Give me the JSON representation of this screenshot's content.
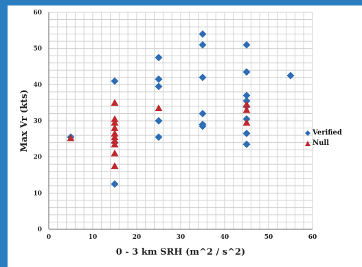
{
  "chart_data": {
    "type": "scatter",
    "xlabel": "0 - 3 km SRH (m^2 / s^2)",
    "ylabel": "Max Vr (kts)",
    "xlim": [
      0,
      60
    ],
    "ylim": [
      0,
      60
    ],
    "x_ticks": [
      "0",
      "10",
      "20",
      "30",
      "40",
      "50",
      "60"
    ],
    "y_ticks": [
      "0",
      "10",
      "20",
      "30",
      "40",
      "50",
      "60"
    ],
    "grid": true,
    "legend_position": "right",
    "series": [
      {
        "name": "Verified",
        "marker": "diamond",
        "color": "#2e6db4",
        "points": [
          [
            5,
            25.5
          ],
          [
            15,
            41
          ],
          [
            15,
            24
          ],
          [
            15,
            12.5
          ],
          [
            25,
            47.5
          ],
          [
            25,
            41.5
          ],
          [
            25,
            39.5
          ],
          [
            25,
            30
          ],
          [
            25,
            25.5
          ],
          [
            35,
            54
          ],
          [
            35,
            51
          ],
          [
            35,
            42
          ],
          [
            35,
            32
          ],
          [
            35,
            29
          ],
          [
            35,
            28.5
          ],
          [
            45,
            51
          ],
          [
            45,
            43.5
          ],
          [
            45,
            37
          ],
          [
            45,
            35.5
          ],
          [
            45,
            34
          ],
          [
            45,
            30.5
          ],
          [
            45,
            26.5
          ],
          [
            45,
            23.5
          ],
          [
            55,
            42.5
          ]
        ]
      },
      {
        "name": "Null",
        "marker": "triangle",
        "color": "#c0282d",
        "points": [
          [
            5,
            25.2
          ],
          [
            15,
            35
          ],
          [
            15,
            30.5
          ],
          [
            15,
            29.5
          ],
          [
            15,
            28
          ],
          [
            15,
            26.5
          ],
          [
            15,
            25.5
          ],
          [
            15,
            24.5
          ],
          [
            15,
            23.5
          ],
          [
            15,
            21
          ],
          [
            15,
            17.5
          ],
          [
            25,
            33.5
          ],
          [
            45,
            34.5
          ],
          [
            45,
            33
          ],
          [
            45,
            29.5
          ]
        ]
      }
    ]
  }
}
